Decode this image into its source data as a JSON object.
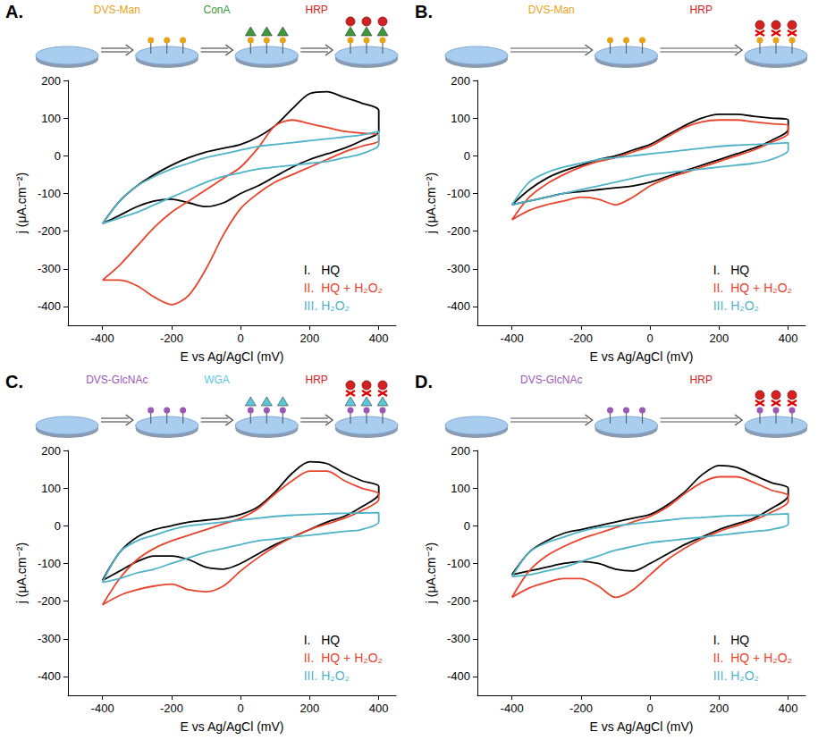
{
  "chart_data": [
    {
      "type": "line",
      "title": "A.",
      "annotations": [
        {
          "text": "DVS-Man",
          "color": "#e8a317"
        },
        {
          "text": "ConA",
          "color": "#3a9a3a"
        },
        {
          "text": "HRP",
          "color": "#d62020"
        }
      ],
      "xlabel": "E vs Ag/AgCl (mV)",
      "ylabel": "j (μA.cm⁻²)",
      "x": [
        -400,
        -350,
        -300,
        -250,
        -200,
        -150,
        -100,
        -50,
        0,
        50,
        100,
        150,
        200,
        250,
        300,
        350,
        400,
        400,
        350,
        300,
        250,
        200,
        150,
        100,
        50,
        0,
        -50,
        -100,
        -150,
        -200,
        -250,
        -300,
        -350,
        -400
      ],
      "series": [
        {
          "name": "I.   HQ",
          "color": "#000000",
          "values": [
            -180,
            -120,
            -80,
            -50,
            -25,
            -5,
            10,
            20,
            30,
            50,
            80,
            125,
            165,
            170,
            155,
            140,
            120,
            65,
            40,
            20,
            5,
            -10,
            -30,
            -55,
            -80,
            -100,
            -125,
            -135,
            -125,
            -115,
            -120,
            -135,
            -158,
            -180
          ]
        },
        {
          "name": "II.  HQ + H₂O₂",
          "color": "#e8432c",
          "values": [
            -330,
            -290,
            -240,
            -190,
            -150,
            -120,
            -90,
            -60,
            -30,
            20,
            80,
            95,
            85,
            75,
            65,
            60,
            55,
            40,
            25,
            10,
            -10,
            -30,
            -50,
            -70,
            -100,
            -140,
            -210,
            -300,
            -370,
            -395,
            -375,
            -345,
            -330,
            -330
          ]
        },
        {
          "name": "III. H₂O₂",
          "color": "#4fb3c8",
          "values": [
            -180,
            -120,
            -80,
            -55,
            -35,
            -20,
            -5,
            5,
            15,
            25,
            30,
            35,
            40,
            45,
            50,
            55,
            65,
            30,
            5,
            -5,
            -15,
            -20,
            -25,
            -30,
            -35,
            -45,
            -55,
            -70,
            -90,
            -110,
            -130,
            -150,
            -165,
            -180
          ]
        }
      ],
      "xlim": [
        -500,
        450
      ],
      "xticks": [
        -400,
        -200,
        0,
        200,
        400
      ],
      "ylim": [
        -450,
        200
      ],
      "yticks": [
        -400,
        -300,
        -200,
        -100,
        0,
        100,
        200
      ],
      "legend": "lower right",
      "grid": false
    },
    {
      "type": "line",
      "title": "B.",
      "annotations": [
        {
          "text": "DVS-Man",
          "color": "#e8a317"
        },
        {
          "text": "HRP",
          "color": "#d62020"
        }
      ],
      "xlabel": "E vs Ag/AgCl (mV)",
      "ylabel": "j (μA.cm⁻²)",
      "x": [
        -400,
        -350,
        -300,
        -250,
        -200,
        -150,
        -100,
        -50,
        0,
        50,
        100,
        150,
        200,
        250,
        300,
        350,
        400,
        400,
        350,
        300,
        250,
        200,
        150,
        100,
        50,
        0,
        -50,
        -100,
        -150,
        -200,
        -250,
        -300,
        -350,
        -400
      ],
      "series": [
        {
          "name": "I.   HQ",
          "color": "#000000",
          "values": [
            -130,
            -90,
            -60,
            -40,
            -25,
            -10,
            0,
            15,
            30,
            55,
            80,
            100,
            110,
            110,
            105,
            100,
            95,
            70,
            40,
            20,
            5,
            -10,
            -25,
            -40,
            -55,
            -70,
            -80,
            -85,
            -90,
            -95,
            -100,
            -110,
            -120,
            -130
          ]
        },
        {
          "name": "II.  HQ + H₂O₂",
          "color": "#e8432c",
          "values": [
            -170,
            -110,
            -75,
            -50,
            -30,
            -15,
            -5,
            10,
            25,
            50,
            75,
            90,
            95,
            95,
            90,
            85,
            80,
            60,
            35,
            15,
            0,
            -15,
            -30,
            -45,
            -60,
            -80,
            -110,
            -130,
            -115,
            -110,
            -120,
            -130,
            -145,
            -170
          ]
        },
        {
          "name": "III. H₂O₂",
          "color": "#4fb3c8",
          "values": [
            -130,
            -70,
            -45,
            -30,
            -20,
            -10,
            -5,
            0,
            5,
            10,
            15,
            20,
            25,
            28,
            30,
            32,
            35,
            15,
            -10,
            -20,
            -25,
            -30,
            -35,
            -40,
            -45,
            -50,
            -60,
            -70,
            -80,
            -90,
            -100,
            -110,
            -120,
            -130
          ]
        }
      ],
      "xlim": [
        -500,
        450
      ],
      "xticks": [
        -400,
        -200,
        0,
        200,
        400
      ],
      "ylim": [
        -450,
        200
      ],
      "yticks": [
        -400,
        -300,
        -200,
        -100,
        0,
        100,
        200
      ],
      "legend": "lower right",
      "grid": false
    },
    {
      "type": "line",
      "title": "C.",
      "annotations": [
        {
          "text": "DVS-GlcNAc",
          "color": "#9b59b6"
        },
        {
          "text": "WGA",
          "color": "#5bc8d8"
        },
        {
          "text": "HRP",
          "color": "#d62020"
        }
      ],
      "xlabel": "E vs Ag/AgCl (mV)",
      "ylabel": "j (μA.cm⁻²)",
      "x": [
        -400,
        -350,
        -300,
        -250,
        -200,
        -150,
        -100,
        -50,
        0,
        50,
        100,
        150,
        200,
        250,
        300,
        350,
        400,
        400,
        350,
        300,
        250,
        200,
        150,
        100,
        50,
        0,
        -50,
        -100,
        -150,
        -200,
        -250,
        -300,
        -350,
        -400
      ],
      "series": [
        {
          "name": "I.   HQ",
          "color": "#000000",
          "values": [
            -145,
            -70,
            -30,
            -10,
            0,
            10,
            15,
            20,
            30,
            50,
            90,
            140,
            170,
            165,
            140,
            120,
            105,
            85,
            50,
            25,
            10,
            -10,
            -30,
            -50,
            -75,
            -100,
            -115,
            -110,
            -90,
            -80,
            -80,
            -95,
            -120,
            -145
          ]
        },
        {
          "name": "II.  HQ + H₂O₂",
          "color": "#e8432c",
          "values": [
            -210,
            -140,
            -90,
            -60,
            -40,
            -25,
            -10,
            5,
            20,
            45,
            85,
            120,
            145,
            145,
            120,
            100,
            85,
            70,
            40,
            20,
            5,
            -10,
            -30,
            -55,
            -85,
            -120,
            -160,
            -175,
            -170,
            -155,
            -160,
            -170,
            -185,
            -210
          ]
        },
        {
          "name": "III. H₂O₂",
          "color": "#4fb3c8",
          "values": [
            -150,
            -70,
            -40,
            -25,
            -10,
            0,
            5,
            10,
            15,
            20,
            25,
            28,
            30,
            32,
            33,
            34,
            35,
            10,
            -10,
            -15,
            -20,
            -25,
            -30,
            -35,
            -40,
            -50,
            -60,
            -70,
            -85,
            -100,
            -115,
            -125,
            -140,
            -150
          ]
        }
      ],
      "xlim": [
        -500,
        450
      ],
      "xticks": [
        -400,
        -200,
        0,
        200,
        400
      ],
      "ylim": [
        -450,
        200
      ],
      "yticks": [
        -400,
        -300,
        -200,
        -100,
        0,
        100,
        200
      ],
      "legend": "lower right",
      "grid": false
    },
    {
      "type": "line",
      "title": "D.",
      "annotations": [
        {
          "text": "DVS-GlcNAc",
          "color": "#9b59b6"
        },
        {
          "text": "HRP",
          "color": "#d62020"
        }
      ],
      "xlabel": "E vs Ag/AgCl (mV)",
      "ylabel": "j (μA.cm⁻²)",
      "x": [
        -400,
        -350,
        -300,
        -250,
        -200,
        -150,
        -100,
        -50,
        0,
        50,
        100,
        150,
        200,
        250,
        300,
        350,
        400,
        400,
        350,
        300,
        250,
        200,
        150,
        100,
        50,
        0,
        -50,
        -100,
        -150,
        -200,
        -250,
        -300,
        -350,
        -400
      ],
      "series": [
        {
          "name": "I.   HQ",
          "color": "#000000",
          "values": [
            -130,
            -70,
            -40,
            -20,
            -10,
            0,
            10,
            20,
            30,
            55,
            90,
            135,
            160,
            155,
            135,
            115,
            100,
            80,
            45,
            20,
            5,
            -10,
            -30,
            -50,
            -75,
            -100,
            -120,
            -115,
            -100,
            -95,
            -100,
            -110,
            -120,
            -130
          ]
        },
        {
          "name": "II.  HQ + H₂O₂",
          "color": "#e8432c",
          "values": [
            -190,
            -120,
            -80,
            -55,
            -35,
            -20,
            -5,
            10,
            25,
            50,
            85,
            115,
            130,
            130,
            115,
            95,
            80,
            65,
            35,
            15,
            0,
            -15,
            -35,
            -60,
            -90,
            -130,
            -170,
            -190,
            -160,
            -140,
            -140,
            -150,
            -165,
            -190
          ]
        },
        {
          "name": "III. H₂O₂",
          "color": "#4fb3c8",
          "values": [
            -135,
            -70,
            -45,
            -30,
            -15,
            -5,
            0,
            5,
            10,
            15,
            20,
            22,
            25,
            27,
            28,
            30,
            32,
            5,
            -10,
            -15,
            -20,
            -25,
            -30,
            -35,
            -40,
            -45,
            -55,
            -65,
            -80,
            -95,
            -110,
            -120,
            -130,
            -135
          ]
        }
      ],
      "xlim": [
        -500,
        450
      ],
      "xticks": [
        -400,
        -200,
        0,
        200,
        400
      ],
      "ylim": [
        -450,
        200
      ],
      "yticks": [
        -400,
        -300,
        -200,
        -100,
        0,
        100,
        200
      ],
      "legend": "lower right",
      "grid": false
    }
  ]
}
